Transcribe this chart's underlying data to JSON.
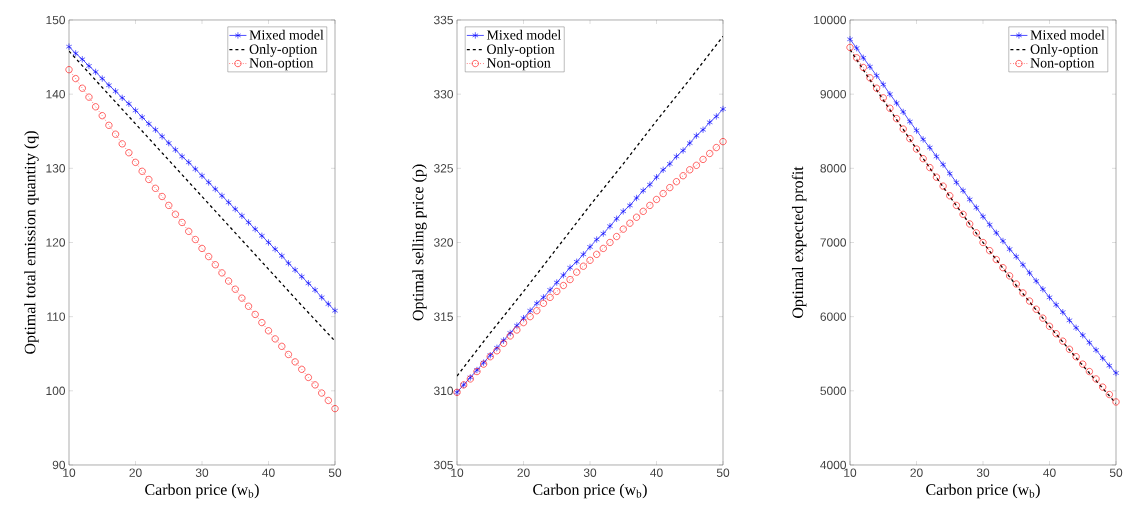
{
  "chart_data": [
    {
      "type": "line",
      "xlabel": "Carbon price (w$_{b}$)",
      "ylabel": "Optimal total emission quantity (q)",
      "legend": "top right",
      "x": [
        10,
        11,
        12,
        13,
        14,
        15,
        16,
        17,
        18,
        19,
        20,
        21,
        22,
        23,
        24,
        25,
        26,
        27,
        28,
        29,
        30,
        31,
        32,
        33,
        34,
        35,
        36,
        37,
        38,
        39,
        40,
        41,
        42,
        43,
        44,
        45,
        46,
        47,
        48,
        49,
        50
      ],
      "xlim": [
        10,
        50
      ],
      "xticks": [
        10,
        20,
        30,
        40,
        50
      ],
      "ylim": [
        90,
        150
      ],
      "yticks": [
        90,
        100,
        110,
        120,
        130,
        140,
        150
      ],
      "series": [
        {
          "name": "Mixed model",
          "color": "#0000ff",
          "marker": "cross",
          "line_style": "solid",
          "values": [
            146.4,
            145.5,
            144.7,
            143.8,
            143.0,
            142.1,
            141.2,
            140.4,
            139.5,
            138.7,
            137.8,
            136.9,
            136.0,
            135.2,
            134.3,
            133.4,
            132.5,
            131.6,
            130.8,
            129.9,
            129.0,
            128.1,
            127.2,
            126.3,
            125.4,
            124.5,
            123.6,
            122.7,
            121.8,
            120.9,
            120.0,
            119.1,
            118.2,
            117.2,
            116.3,
            115.4,
            114.5,
            113.6,
            112.6,
            111.7,
            110.8
          ]
        },
        {
          "name": "Only-option",
          "color": "#000000",
          "marker": "none",
          "line_style": "dashed",
          "x": [
            10,
            15,
            20,
            25,
            30,
            35,
            40,
            45,
            50
          ],
          "values": [
            145.8,
            140.9,
            136.0,
            131.1,
            126.2,
            121.3,
            116.4,
            111.5,
            106.7
          ]
        },
        {
          "name": "Non-option",
          "color": "#ff0000",
          "marker": "circle",
          "line_style": "dotted",
          "values": [
            143.3,
            142.1,
            140.8,
            139.6,
            138.3,
            137.1,
            135.8,
            134.6,
            133.3,
            132.1,
            130.8,
            129.6,
            128.5,
            127.3,
            126.2,
            125.0,
            123.8,
            122.7,
            121.5,
            120.4,
            119.2,
            118.1,
            117.0,
            115.9,
            114.8,
            113.7,
            112.5,
            111.4,
            110.3,
            109.2,
            108.1,
            107.0,
            106.0,
            104.9,
            103.9,
            102.9,
            101.8,
            100.8,
            99.7,
            98.7,
            97.6
          ]
        }
      ]
    },
    {
      "type": "line",
      "xlabel": "Carbon price (w$_{b}$)",
      "ylabel": "Optimal selling price (p)",
      "legend": "top left",
      "x": [
        10,
        11,
        12,
        13,
        14,
        15,
        16,
        17,
        18,
        19,
        20,
        21,
        22,
        23,
        24,
        25,
        26,
        27,
        28,
        29,
        30,
        31,
        32,
        33,
        34,
        35,
        36,
        37,
        38,
        39,
        40,
        41,
        42,
        43,
        44,
        45,
        46,
        47,
        48,
        49,
        50
      ],
      "xlim": [
        10,
        50
      ],
      "xticks": [
        10,
        20,
        30,
        40,
        50
      ],
      "ylim": [
        305,
        335
      ],
      "yticks": [
        305,
        310,
        315,
        320,
        325,
        330,
        335
      ],
      "series": [
        {
          "name": "Mixed model",
          "color": "#0000ff",
          "marker": "cross",
          "line_style": "solid",
          "values": [
            309.9,
            310.4,
            310.9,
            311.4,
            311.9,
            312.4,
            312.9,
            313.4,
            313.9,
            314.4,
            314.9,
            315.4,
            315.9,
            316.3,
            316.8,
            317.3,
            317.8,
            318.3,
            318.7,
            319.2,
            319.7,
            320.2,
            320.6,
            321.1,
            321.6,
            322.1,
            322.5,
            323.0,
            323.5,
            323.9,
            324.4,
            324.9,
            325.3,
            325.8,
            326.2,
            326.7,
            327.2,
            327.6,
            328.1,
            328.5,
            329.0
          ]
        },
        {
          "name": "Only-option",
          "color": "#000000",
          "marker": "none",
          "line_style": "dashed",
          "x": [
            10,
            15,
            20,
            25,
            30,
            35,
            40,
            45,
            50
          ],
          "values": [
            311.0,
            313.9,
            316.7,
            319.6,
            322.5,
            325.3,
            328.2,
            331.0,
            333.9
          ]
        },
        {
          "name": "Non-option",
          "color": "#ff0000",
          "marker": "circle",
          "line_style": "dotted",
          "values": [
            309.9,
            310.4,
            310.8,
            311.3,
            311.8,
            312.3,
            312.7,
            313.2,
            313.7,
            314.1,
            314.6,
            315.0,
            315.4,
            315.9,
            316.3,
            316.7,
            317.1,
            317.5,
            318.0,
            318.4,
            318.8,
            319.2,
            319.6,
            320.0,
            320.4,
            320.9,
            321.3,
            321.7,
            322.1,
            322.5,
            322.9,
            323.3,
            323.7,
            324.1,
            324.5,
            324.9,
            325.2,
            325.6,
            326.0,
            326.4,
            326.8
          ]
        }
      ]
    },
    {
      "type": "line",
      "xlabel": "Carbon price (w$_{b}$)",
      "ylabel": "Optimal expected profit",
      "legend": "top right",
      "x": [
        10,
        11,
        12,
        13,
        14,
        15,
        16,
        17,
        18,
        19,
        20,
        21,
        22,
        23,
        24,
        25,
        26,
        27,
        28,
        29,
        30,
        31,
        32,
        33,
        34,
        35,
        36,
        37,
        38,
        39,
        40,
        41,
        42,
        43,
        44,
        45,
        46,
        47,
        48,
        49,
        50
      ],
      "xlim": [
        10,
        50
      ],
      "xticks": [
        10,
        20,
        30,
        40,
        50
      ],
      "ylim": [
        4000,
        10000
      ],
      "yticks": [
        4000,
        5000,
        6000,
        7000,
        8000,
        9000,
        10000
      ],
      "series": [
        {
          "name": "Mixed model",
          "color": "#0000ff",
          "marker": "cross",
          "line_style": "solid",
          "values": [
            9740,
            9620,
            9490,
            9370,
            9250,
            9130,
            9000,
            8880,
            8760,
            8630,
            8510,
            8390,
            8280,
            8160,
            8050,
            7930,
            7810,
            7700,
            7580,
            7470,
            7350,
            7240,
            7130,
            7020,
            6910,
            6810,
            6700,
            6590,
            6480,
            6370,
            6260,
            6160,
            6060,
            5950,
            5850,
            5750,
            5650,
            5550,
            5440,
            5340,
            5240
          ]
        },
        {
          "name": "Only-option",
          "color": "#000000",
          "marker": "none",
          "line_style": "dashed",
          "x": [
            10,
            15,
            20,
            25,
            30,
            35,
            40,
            45,
            50
          ],
          "values": [
            9600,
            8920,
            8260,
            7620,
            7000,
            6420,
            5870,
            5340,
            4830
          ]
        },
        {
          "name": "Non-option",
          "color": "#ff0000",
          "marker": "circle",
          "line_style": "dotted",
          "values": [
            9630,
            9490,
            9360,
            9220,
            9080,
            8950,
            8810,
            8670,
            8530,
            8400,
            8260,
            8130,
            8010,
            7880,
            7760,
            7630,
            7500,
            7380,
            7250,
            7130,
            7000,
            6890,
            6770,
            6660,
            6550,
            6440,
            6320,
            6210,
            6100,
            5980,
            5870,
            5770,
            5670,
            5560,
            5460,
            5360,
            5260,
            5160,
            5050,
            4950,
            4850
          ]
        }
      ]
    }
  ]
}
